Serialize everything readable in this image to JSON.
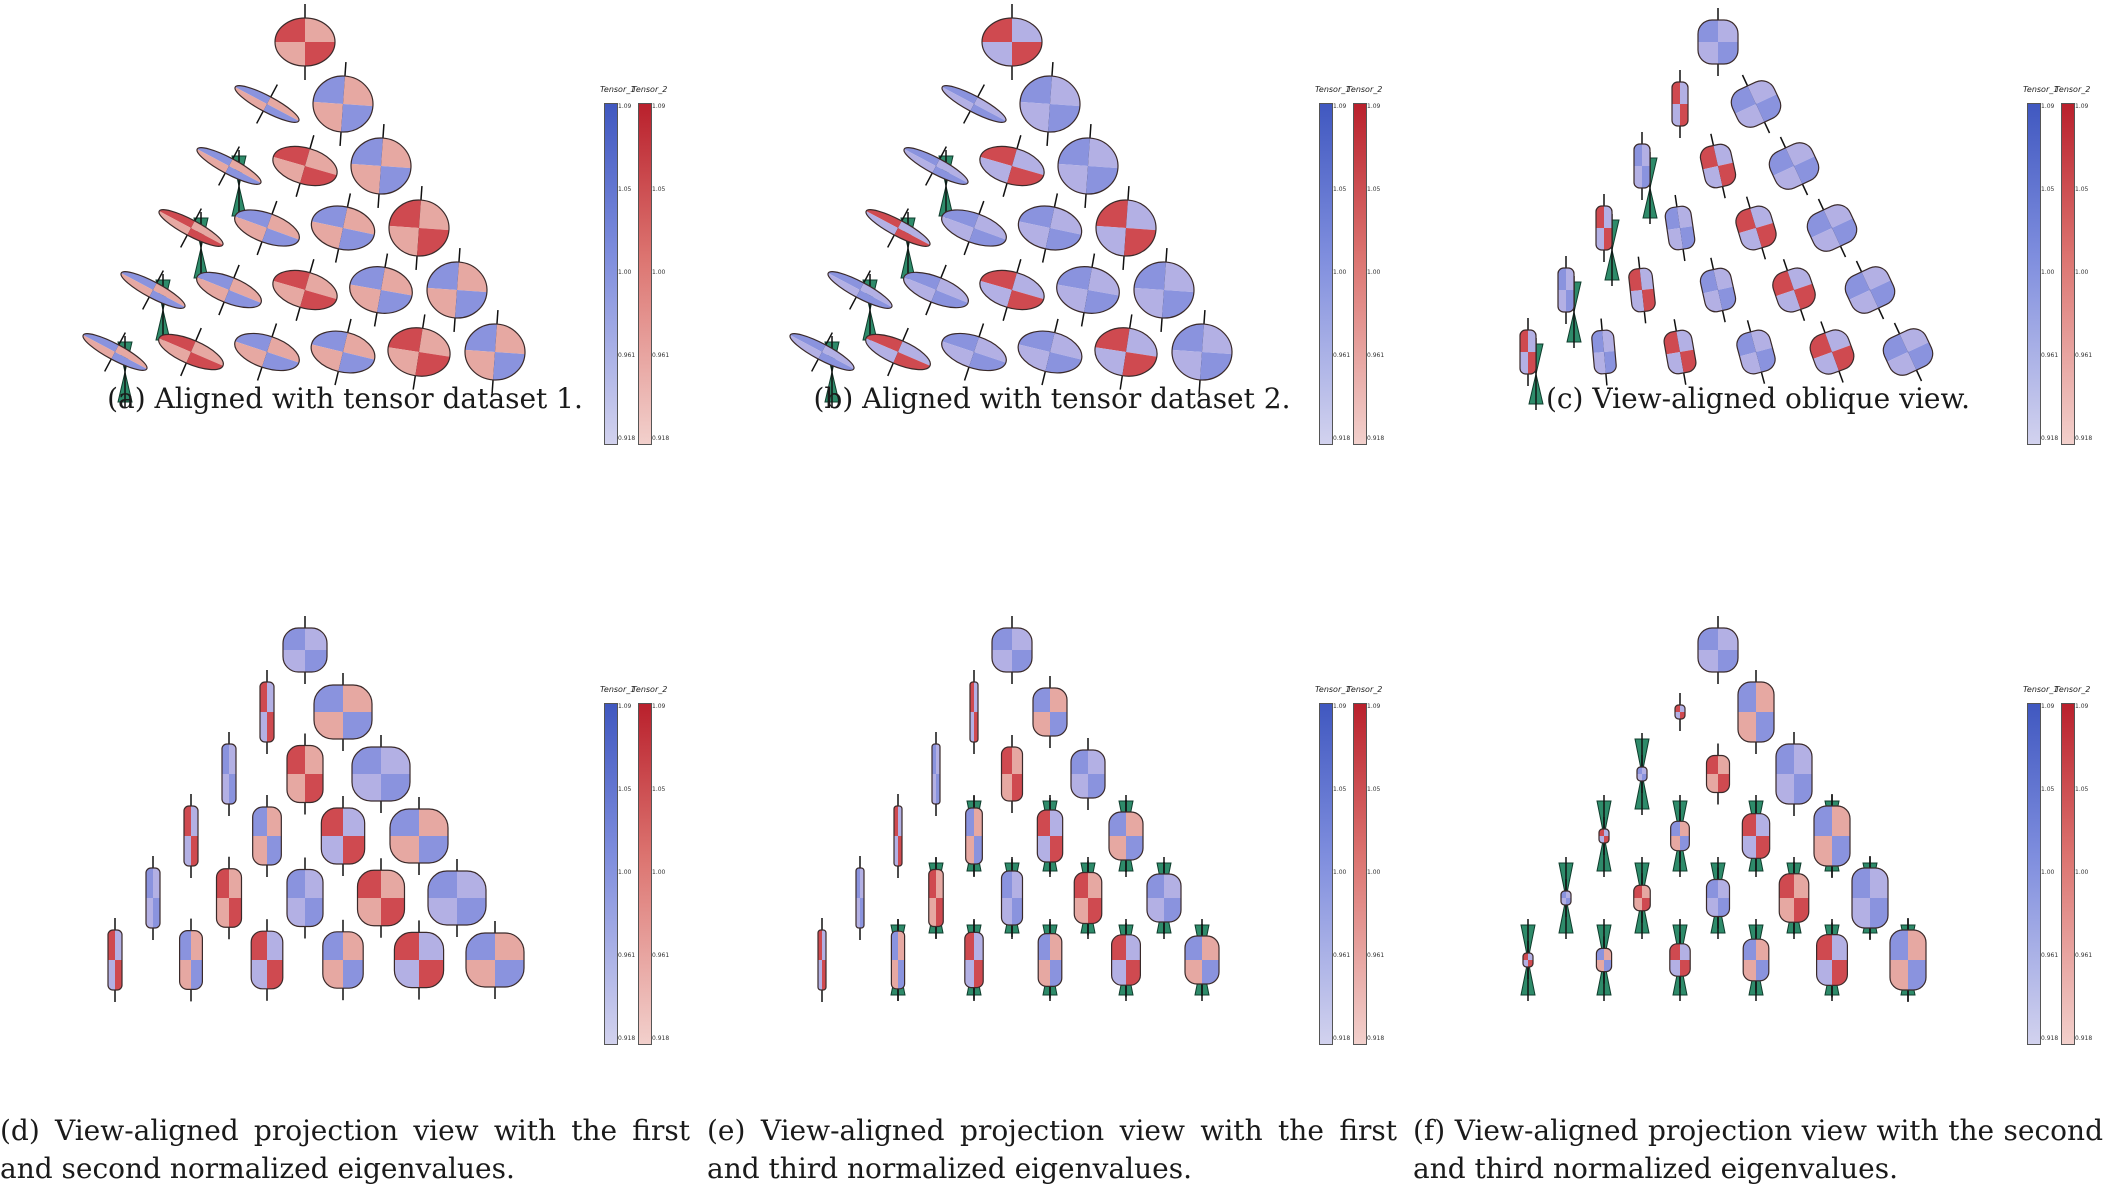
{
  "colorbar": {
    "labels": [
      "Tensor_1",
      "Tensor_2"
    ],
    "ticks": [
      "1.09",
      "1.05",
      "1.00",
      "0.961",
      "0.918"
    ],
    "colors": {
      "tensor1_high": "#4058c0",
      "tensor1_low": "#d2d2ee",
      "tensor2_high": "#b9202c",
      "tensor2_low": "#f2d0cc",
      "cone": "#2e8b6a"
    }
  },
  "panels": [
    {
      "id": "a",
      "caption": "(a) Aligned with tensor dataset 1.",
      "view": "aligned-1"
    },
    {
      "id": "b",
      "caption": "(b) Aligned with tensor dataset 2.",
      "view": "aligned-2"
    },
    {
      "id": "c",
      "caption": "(c) View-aligned oblique view.",
      "view": "oblique"
    },
    {
      "id": "d",
      "caption": "(d) View-aligned projection view with the first and second normalized eigenvalues.",
      "view": "projection-12"
    },
    {
      "id": "e",
      "caption": "(e) View-aligned projection view with the first and third normalized eigenvalues.",
      "view": "projection-13"
    },
    {
      "id": "f",
      "caption": "(f) View-aligned projection view with the second and third normalized eigenvalues.",
      "view": "projection-23"
    }
  ]
}
